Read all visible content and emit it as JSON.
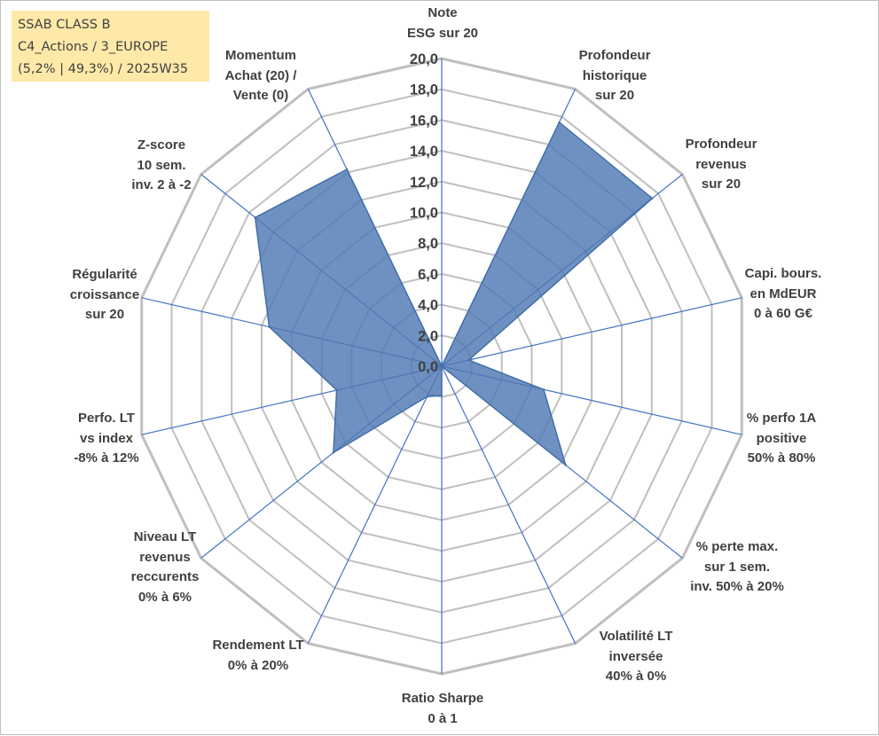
{
  "title_box": {
    "line1": "SSAB CLASS B",
    "line2": "C4_Actions / 3_EUROPE",
    "line3": "(5,2% | 49,3%) / 2025W35"
  },
  "colors": {
    "grid": "#bfbfbf",
    "spoke": "#4472c4",
    "fill": "#4f79b3",
    "outline": "#416fa8",
    "text": "#404040",
    "title_bg": "#ffe9a8"
  },
  "chart_data": {
    "type": "radar",
    "title": "",
    "range": [
      0,
      20
    ],
    "tick_step": 2,
    "tick_labels": [
      "0,0",
      "2,0",
      "4,0",
      "6,0",
      "8,0",
      "10,0",
      "12,0",
      "14,0",
      "16,0",
      "18,0",
      "20,0"
    ],
    "grid": true,
    "legend": "none",
    "axes": [
      {
        "label": [
          "Note",
          "ESG sur 20"
        ],
        "value": 0
      },
      {
        "label": [
          "Profondeur",
          "historique",
          "sur 20"
        ],
        "value": 17.6
      },
      {
        "label": [
          "Profondeur",
          "revenus",
          "sur 20"
        ],
        "value": 17.5
      },
      {
        "label": [
          "Capi. bours.",
          "en MdEUR",
          "0 à 60 G€"
        ],
        "value": 1.8
      },
      {
        "label": [
          "% perfo 1A",
          "positive",
          "50% à 80%"
        ],
        "value": 6.8
      },
      {
        "label": [
          "% perte max.",
          "sur 1 sem.",
          "inv. 50% à 20%"
        ],
        "value": 10.3
      },
      {
        "label": [
          "Volatilité LT",
          "inversée",
          "40% à 0%"
        ],
        "value": 0
      },
      {
        "label": [
          "Ratio Sharpe",
          "0 à 1"
        ],
        "value": 1.9
      },
      {
        "label": [
          "Rendement LT",
          "0% à 20%"
        ],
        "value": 2.2
      },
      {
        "label": [
          "Niveau LT",
          "revenus",
          "reccurents",
          "0% à 6%"
        ],
        "value": 9.0
      },
      {
        "label": [
          "Perfo. LT",
          "vs index",
          "-8% à 12%"
        ],
        "value": 7.0
      },
      {
        "label": [
          "Régularité",
          "croissance",
          "sur 20"
        ],
        "value": 11.5
      },
      {
        "label": [
          "Z-score",
          "10 sem.",
          "inv. 2 à -2"
        ],
        "value": 15.5
      },
      {
        "label": [
          "Momentum",
          "Achat (20) /",
          "Vente (0)"
        ],
        "value": 14.2
      }
    ]
  }
}
